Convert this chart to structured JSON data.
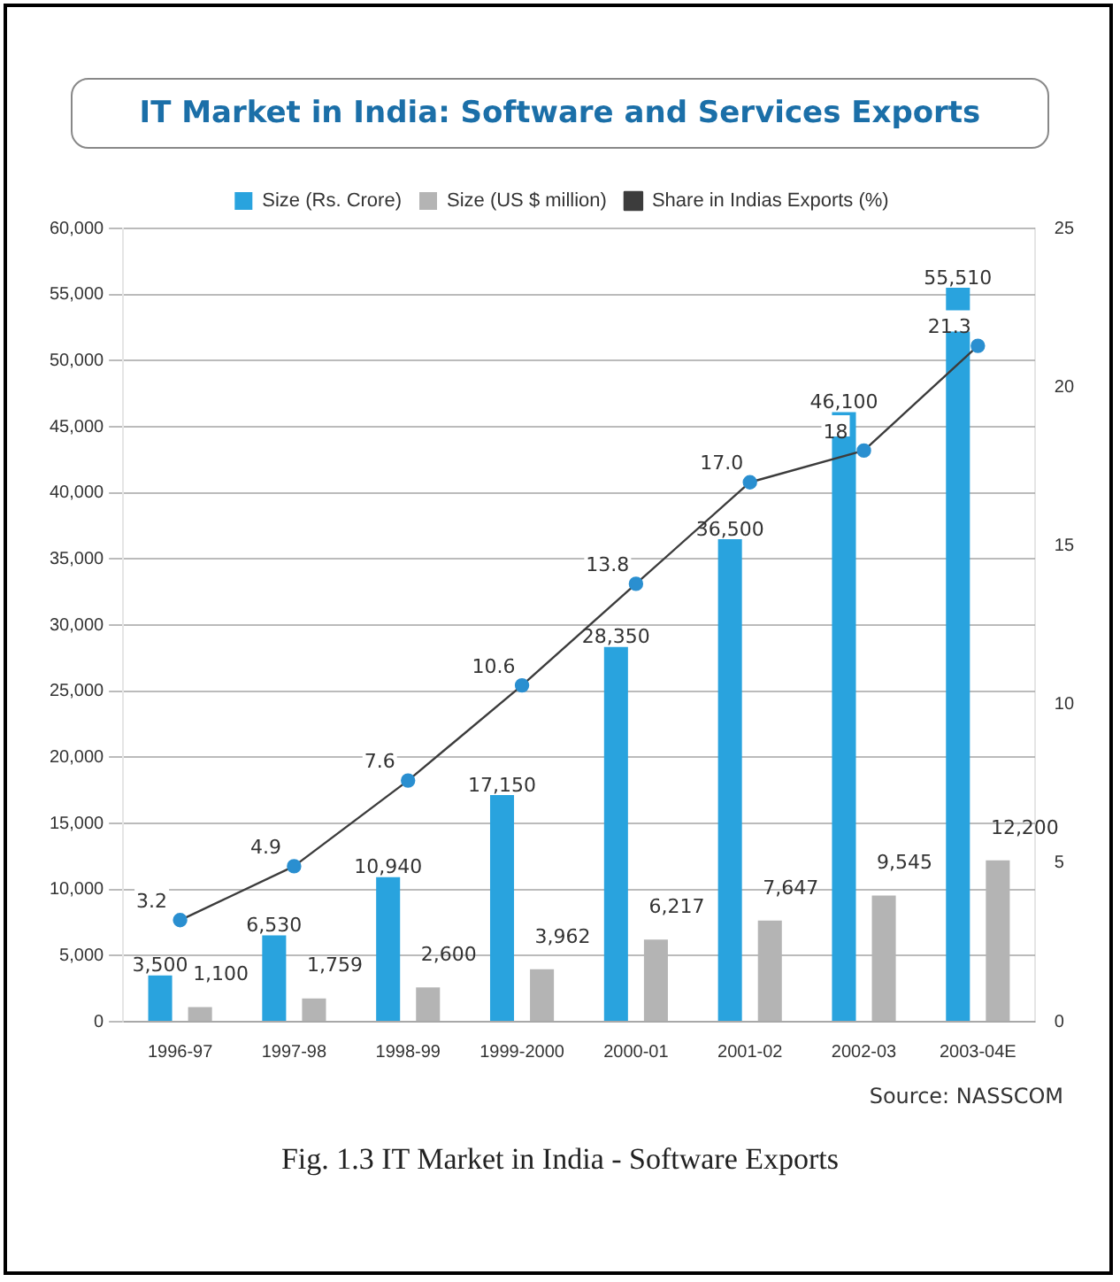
{
  "chart_data": {
    "type": "bar",
    "title": "IT Market in India: Software and Services Exports",
    "categories": [
      "1996-97",
      "1997-98",
      "1998-99",
      "1999-2000",
      "2000-01",
      "2001-02",
      "2002-03",
      "2003-04E"
    ],
    "series": [
      {
        "name": "Size (Rs. Crore)",
        "color": "#29a3de",
        "values": [
          3500,
          6530,
          10940,
          17150,
          28350,
          36500,
          46100,
          55510
        ],
        "value_labels": [
          "3,500",
          "6,530",
          "10,940",
          "17,150",
          "28,350",
          "36,500",
          "46,100",
          "55,510"
        ]
      },
      {
        "name": "Size (US $ million)",
        "color": "#b4b4b4",
        "values": [
          1100,
          1759,
          2600,
          3962,
          6217,
          7647,
          9545,
          12200
        ],
        "value_labels": [
          "1,100",
          "1,759",
          "2,600",
          "3,962",
          "6,217",
          "7,647",
          "9,545",
          "12,200"
        ]
      },
      {
        "name": "Share in Indias Exports (%)",
        "type": "line",
        "axis": "y2",
        "color": "#3c3c3c",
        "values": [
          3.2,
          4.9,
          7.6,
          10.6,
          13.8,
          17.0,
          18,
          21.3
        ],
        "value_labels": [
          "3.2",
          "4.9",
          "7.6",
          "10.6",
          "13.8",
          "17.0",
          "18",
          "21.3"
        ]
      }
    ],
    "ylim": [
      0,
      60000
    ],
    "yticks": [
      0,
      {
        "value": 5000,
        "label": "5,000"
      },
      {
        "value": 10000,
        "label": "10,000"
      },
      {
        "value": 15000,
        "label": "15,000"
      },
      {
        "value": 20000,
        "label": "20,000"
      },
      {
        "value": 25000,
        "label": "25,000"
      },
      {
        "value": 30000,
        "label": "30,000"
      },
      {
        "value": 35000,
        "label": "35,000"
      },
      {
        "value": 40000,
        "label": "40,000"
      },
      {
        "value": 45000,
        "label": "45,000"
      },
      {
        "value": 50000,
        "label": "50,000"
      },
      {
        "value": 55000,
        "label": "55,000"
      },
      {
        "value": 60000,
        "label": "60,000"
      }
    ],
    "y2lim": [
      0,
      25
    ],
    "y2ticks": [
      0,
      5,
      10,
      15,
      20,
      25
    ],
    "grid": "y",
    "legend": "top",
    "marker": "circle",
    "annotations": [
      "Source: NASSCOM",
      "Fig. 1.3 IT Market in India - Software Exports"
    ]
  }
}
